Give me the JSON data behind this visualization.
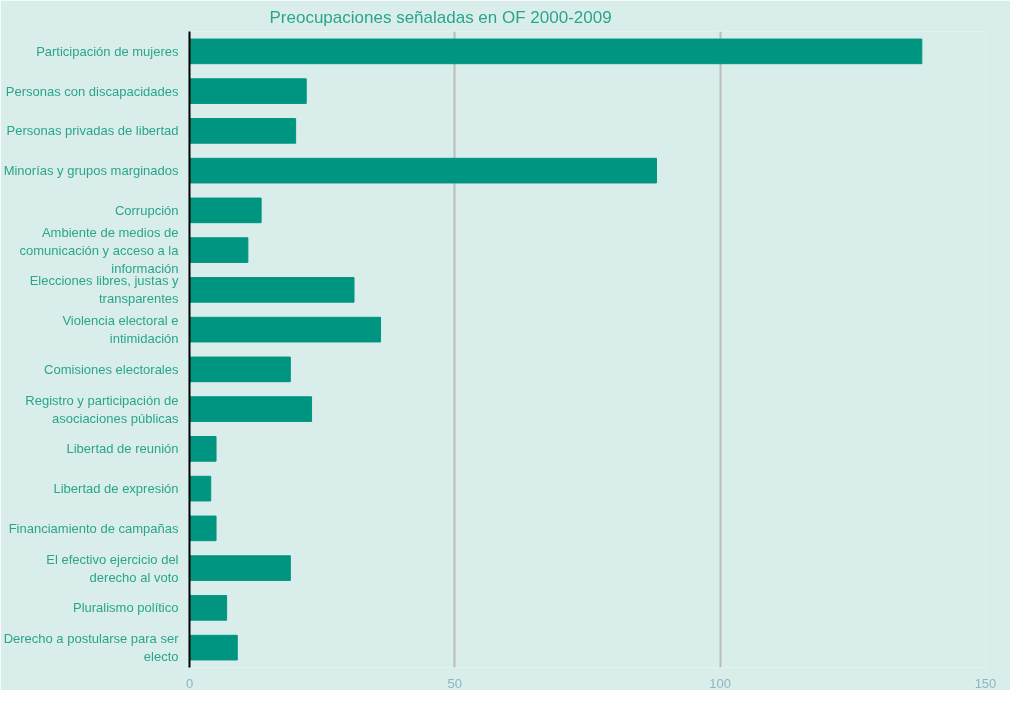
{
  "chart_data": {
    "type": "bar",
    "orientation": "horizontal",
    "title": "Preocupaciones señaladas en OF 2000-2009",
    "categories": [
      "Participación de mujeres",
      "Personas con discapacidades",
      "Personas privadas de libertad",
      "Minorías y grupos marginados",
      "Corrupción",
      "Ambiente de medios de comunicación y acceso a la información",
      "Elecciones libres, justas y transparentes",
      "Violencia electoral e intimidación",
      "Comisiones electorales",
      "Registro y participación de asociaciones públicas",
      "Libertad de reunión",
      "Libertad de expresión",
      "Financiamiento de campañas",
      "El efectivo ejercicio del derecho al voto",
      "Pluralismo político",
      "Derecho a postularse para ser electo"
    ],
    "values": [
      138,
      22,
      20,
      88,
      13.5,
      11,
      31,
      36,
      19,
      23,
      5,
      4,
      5,
      19,
      7,
      9
    ],
    "color": "#009580",
    "xlim": [
      0,
      150
    ],
    "xticks": [
      0,
      50,
      100,
      150
    ],
    "grid": "x"
  }
}
